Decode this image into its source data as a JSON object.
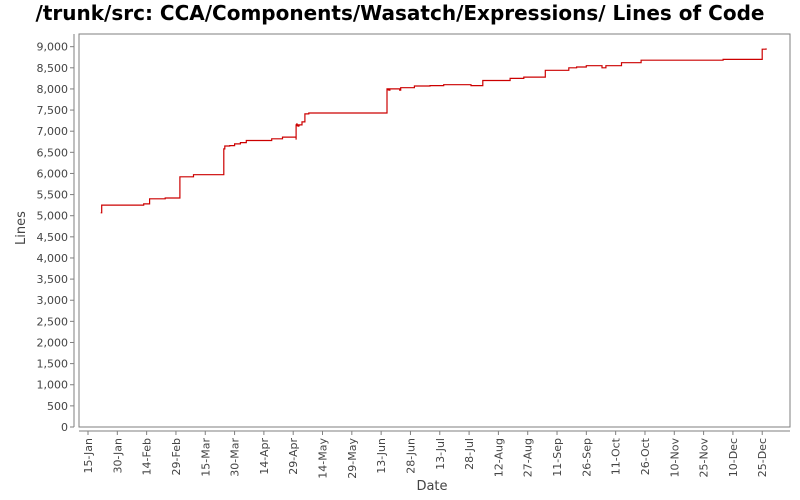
{
  "chart_data": {
    "type": "line",
    "title": "/trunk/src: CCA/Components/Wasatch/Expressions/ Lines of Code",
    "xlabel": "Date",
    "ylabel": "Lines",
    "ylim": [
      0,
      9300
    ],
    "y_ticks": [
      "0",
      "500",
      "1,000",
      "1,500",
      "2,000",
      "2,500",
      "3,000",
      "3,500",
      "4,000",
      "4,500",
      "5,000",
      "5,500",
      "6,000",
      "6,500",
      "7,000",
      "7,500",
      "8,000",
      "8,500",
      "9,000"
    ],
    "x_ticks": [
      "15-Jan",
      "30-Jan",
      "14-Feb",
      "29-Feb",
      "15-Mar",
      "30-Mar",
      "14-Apr",
      "29-Apr",
      "14-May",
      "29-May",
      "13-Jun",
      "28-Jun",
      "13-Jul",
      "28-Jul",
      "12-Aug",
      "27-Aug",
      "11-Sep",
      "26-Sep",
      "11-Oct",
      "26-Oct",
      "10-Nov",
      "25-Nov",
      "10-Dec",
      "25-Dec"
    ],
    "x_range_days": [
      0,
      364
    ],
    "grid": false,
    "series": [
      {
        "color": "#cc0000",
        "step": true,
        "x": [
          6.5,
          7,
          28.5,
          31.5,
          38.5,
          39.5,
          47,
          54,
          69.5,
          70,
          72.5,
          75,
          78,
          81,
          94,
          99.5,
          106.5,
          106.5,
          106.8,
          107,
          107.3,
          107.5,
          107.8,
          108,
          109.5,
          111,
          113,
          153,
          153.2,
          153.5,
          154,
          154.5,
          159.5,
          160,
          167,
          175,
          182,
          193,
          196,
          202,
          216,
          223,
          234,
          246,
          250,
          255,
          263,
          265,
          273,
          283,
          325,
          345,
          347
        ],
        "y": [
          5070,
          5250,
          5280,
          5400,
          5400,
          5420,
          5920,
          5970,
          6580,
          6650,
          6660,
          6700,
          6730,
          6780,
          6820,
          6860,
          6800,
          7150,
          7170,
          7130,
          7150,
          7120,
          7130,
          7150,
          7220,
          7410,
          7430,
          8000,
          7980,
          8000,
          7970,
          8000,
          7970,
          8030,
          8070,
          8080,
          8100,
          8100,
          8080,
          8200,
          8250,
          8280,
          8440,
          8500,
          8520,
          8550,
          8500,
          8550,
          8620,
          8680,
          8700,
          8940,
          8960
        ]
      }
    ]
  }
}
